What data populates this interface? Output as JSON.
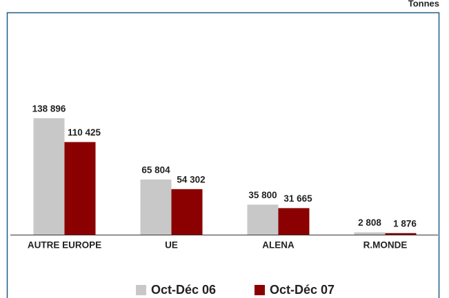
{
  "chart_data": {
    "type": "bar",
    "unit": "Tonnes",
    "categories": [
      "AUTRE EUROPE",
      "UE",
      "ALENA",
      "R.MONDE"
    ],
    "series": [
      {
        "name": "Oct-Déc 06",
        "color": "#c8c8c8",
        "values": [
          138896,
          65804,
          35800,
          2808
        ],
        "value_labels": [
          "138 896",
          "65 804",
          "35 800",
          "2 808"
        ]
      },
      {
        "name": "Oct-Déc 07",
        "color": "#8b0000",
        "values": [
          110425,
          54302,
          31665,
          1876
        ],
        "value_labels": [
          "110 425",
          "54 302",
          "31 665",
          "1 876"
        ]
      }
    ],
    "ylim": [
      0,
      160000
    ]
  }
}
